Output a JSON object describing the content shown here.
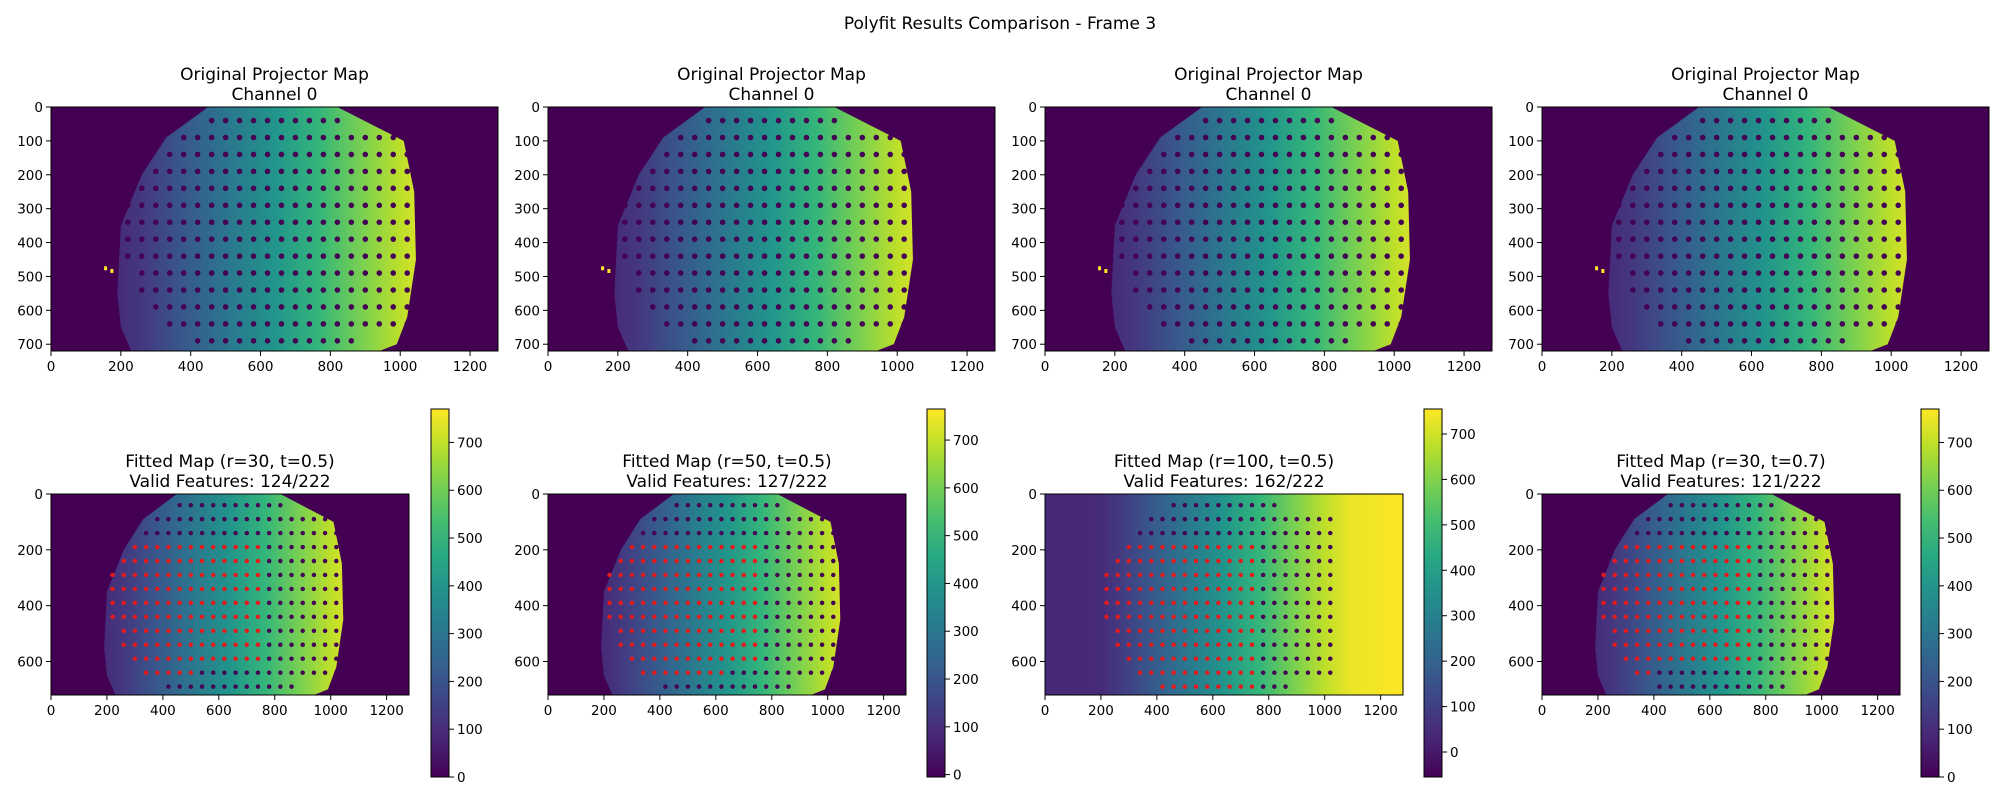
{
  "figure": {
    "suptitle": "Polyfit Results Comparison - Frame 3"
  },
  "colormap": {
    "name": "viridis",
    "stops": [
      "#440154",
      "#482878",
      "#3e4989",
      "#31688e",
      "#26828e",
      "#1f9e89",
      "#35b779",
      "#6ece58",
      "#b5de2b",
      "#fde725"
    ],
    "outlier_color": "#fde725",
    "marker_color": "#e41a1c"
  },
  "chart_data": [
    {
      "type": "heatmap",
      "row": 0,
      "col": 0,
      "title": [
        "Original Projector Map",
        "Channel 0"
      ],
      "xticks": [
        0,
        200,
        400,
        600,
        800,
        1000,
        1200
      ],
      "yticks": [
        0,
        100,
        200,
        300,
        400,
        500,
        600,
        700
      ],
      "xlim": [
        0,
        1280
      ],
      "ylim": [
        720,
        0
      ],
      "value_range": [
        0,
        760
      ],
      "fill": "masked",
      "colorbar": false,
      "valid_features": null
    },
    {
      "type": "heatmap",
      "row": 0,
      "col": 1,
      "title": [
        "Original Projector Map",
        "Channel 0"
      ],
      "xticks": [
        0,
        200,
        400,
        600,
        800,
        1000,
        1200
      ],
      "yticks": [
        0,
        100,
        200,
        300,
        400,
        500,
        600,
        700
      ],
      "xlim": [
        0,
        1280
      ],
      "ylim": [
        720,
        0
      ],
      "value_range": [
        0,
        760
      ],
      "fill": "masked",
      "colorbar": false,
      "valid_features": null
    },
    {
      "type": "heatmap",
      "row": 0,
      "col": 2,
      "title": [
        "Original Projector Map",
        "Channel 0"
      ],
      "xticks": [
        0,
        200,
        400,
        600,
        800,
        1000,
        1200
      ],
      "yticks": [
        0,
        100,
        200,
        300,
        400,
        500,
        600,
        700
      ],
      "xlim": [
        0,
        1280
      ],
      "ylim": [
        720,
        0
      ],
      "value_range": [
        0,
        760
      ],
      "fill": "masked",
      "colorbar": false,
      "valid_features": null
    },
    {
      "type": "heatmap",
      "row": 0,
      "col": 3,
      "title": [
        "Original Projector Map",
        "Channel 0"
      ],
      "xticks": [
        0,
        200,
        400,
        600,
        800,
        1000,
        1200
      ],
      "yticks": [
        0,
        100,
        200,
        300,
        400,
        500,
        600,
        700
      ],
      "xlim": [
        0,
        1280
      ],
      "ylim": [
        720,
        0
      ],
      "value_range": [
        0,
        760
      ],
      "fill": "masked",
      "colorbar": false,
      "valid_features": null
    },
    {
      "type": "heatmap",
      "row": 1,
      "col": 0,
      "title": [
        "Fitted Map (r=30, t=0.5)",
        "Valid Features: 124/222"
      ],
      "xticks": [
        0,
        200,
        400,
        600,
        800,
        1000,
        1200
      ],
      "yticks": [
        0,
        200,
        400,
        600
      ],
      "xlim": [
        0,
        1280
      ],
      "ylim": [
        720,
        0
      ],
      "value_range": [
        0,
        760
      ],
      "fill": "masked",
      "colorbar": true,
      "colorbar_ticks": [
        0,
        100,
        200,
        300,
        400,
        500,
        600,
        700
      ],
      "colorbar_range": [
        0,
        770
      ],
      "valid_features": 124,
      "total_features": 222
    },
    {
      "type": "heatmap",
      "row": 1,
      "col": 1,
      "title": [
        "Fitted Map (r=50, t=0.5)",
        "Valid Features: 127/222"
      ],
      "xticks": [
        0,
        200,
        400,
        600,
        800,
        1000,
        1200
      ],
      "yticks": [
        0,
        200,
        400,
        600
      ],
      "xlim": [
        0,
        1280
      ],
      "ylim": [
        720,
        0
      ],
      "value_range": [
        0,
        760
      ],
      "fill": "partial",
      "colorbar": true,
      "colorbar_ticks": [
        0,
        100,
        200,
        300,
        400,
        500,
        600,
        700
      ],
      "colorbar_range": [
        -5,
        765
      ],
      "valid_features": 127,
      "total_features": 222
    },
    {
      "type": "heatmap",
      "row": 1,
      "col": 2,
      "title": [
        "Fitted Map (r=100, t=0.5)",
        "Valid Features: 162/222"
      ],
      "xticks": [
        0,
        200,
        400,
        600,
        800,
        1000,
        1200
      ],
      "yticks": [
        0,
        200,
        400,
        600
      ],
      "xlim": [
        0,
        1280
      ],
      "ylim": [
        720,
        0
      ],
      "value_range": [
        0,
        760
      ],
      "fill": "full",
      "colorbar": true,
      "colorbar_ticks": [
        0,
        100,
        200,
        300,
        400,
        500,
        600,
        700
      ],
      "colorbar_range": [
        -55,
        755
      ],
      "valid_features": 162,
      "total_features": 222
    },
    {
      "type": "heatmap",
      "row": 1,
      "col": 3,
      "title": [
        "Fitted Map (r=30, t=0.7)",
        "Valid Features: 121/222"
      ],
      "xticks": [
        0,
        200,
        400,
        600,
        800,
        1000,
        1200
      ],
      "yticks": [
        0,
        200,
        400,
        600
      ],
      "xlim": [
        0,
        1280
      ],
      "ylim": [
        720,
        0
      ],
      "value_range": [
        0,
        760
      ],
      "fill": "masked",
      "colorbar": true,
      "colorbar_ticks": [
        0,
        100,
        200,
        300,
        400,
        500,
        600,
        700
      ],
      "colorbar_range": [
        0,
        770
      ],
      "valid_features": 121,
      "total_features": 222
    }
  ]
}
